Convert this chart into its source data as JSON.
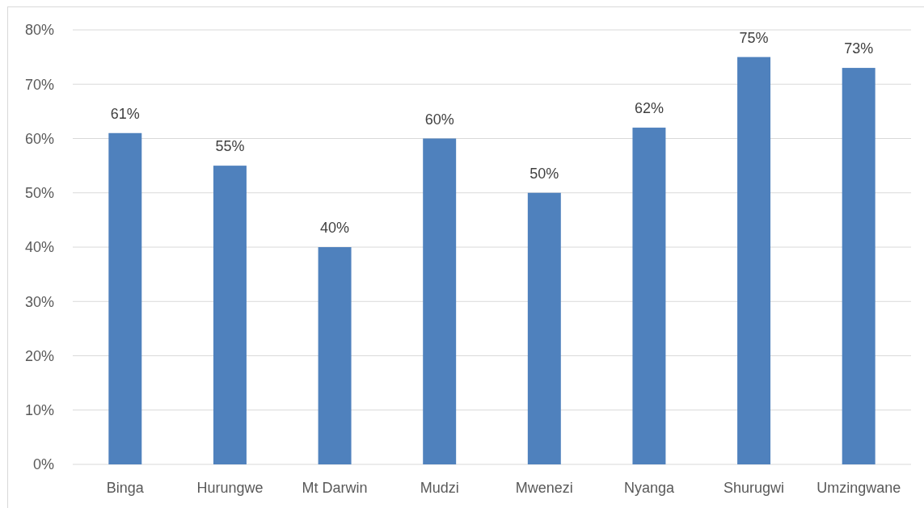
{
  "chart_data": {
    "type": "bar",
    "categories": [
      "Binga",
      "Hurungwe",
      "Mt Darwin",
      "Mudzi",
      "Mwenezi",
      "Nyanga",
      "Shurugwi",
      "Umzingwane"
    ],
    "values": [
      61,
      55,
      40,
      60,
      50,
      62,
      75,
      73
    ],
    "value_labels": [
      "61%",
      "55%",
      "40%",
      "60%",
      "50%",
      "62%",
      "75%",
      "73%"
    ],
    "color": "#4f81bd",
    "ylim": [
      0,
      80
    ],
    "yticks": [
      {
        "value": 0,
        "label": "0%"
      },
      {
        "value": 10,
        "label": "10%"
      },
      {
        "value": 20,
        "label": "20%"
      },
      {
        "value": 30,
        "label": "30%"
      },
      {
        "value": 40,
        "label": "40%"
      },
      {
        "value": 50,
        "label": "50%"
      },
      {
        "value": 60,
        "label": "60%"
      },
      {
        "value": 70,
        "label": "70%"
      },
      {
        "value": 80,
        "label": "80%"
      }
    ],
    "grid": "y"
  }
}
